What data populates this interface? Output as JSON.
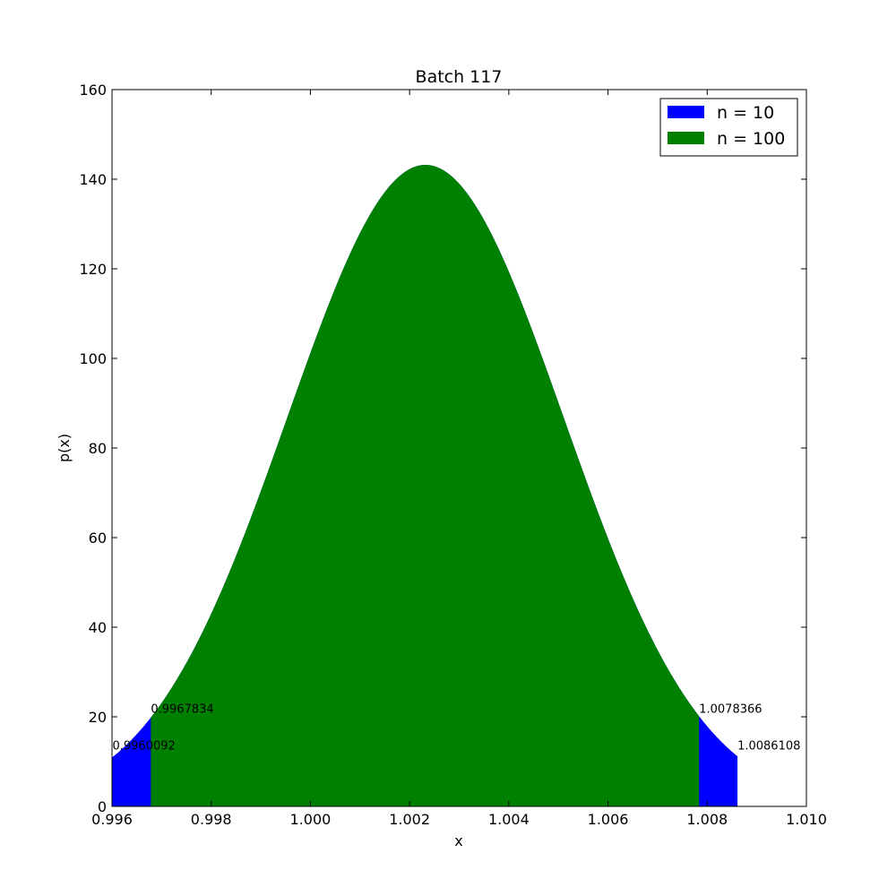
{
  "chart_data": {
    "type": "area",
    "title": "Batch 117",
    "xlabel": "x",
    "ylabel": "p(x)",
    "xlim": [
      0.996,
      1.01
    ],
    "ylim": [
      0,
      160
    ],
    "xticks": [
      "0.996",
      "0.998",
      "1.000",
      "1.002",
      "1.004",
      "1.006",
      "1.008",
      "1.010"
    ],
    "yticks": [
      "0",
      "20",
      "40",
      "60",
      "80",
      "100",
      "120",
      "140",
      "160"
    ],
    "grid": false,
    "legend_position": "top-right",
    "distribution": {
      "mean": 1.00232,
      "std": 0.002785,
      "peak": 143.2
    },
    "series": [
      {
        "name": "n = 10",
        "color": "#0000ff",
        "range": [
          0.9960092,
          1.0086108
        ]
      },
      {
        "name": "n = 100",
        "color": "#008000",
        "range": [
          0.9967834,
          1.0078366
        ]
      }
    ],
    "annotations": [
      {
        "text": "0.9960092",
        "x": 0.9960092,
        "y": 12.3
      },
      {
        "text": "0.9967834",
        "x": 0.9967834,
        "y": 20.5
      },
      {
        "text": "1.0078366",
        "x": 1.0078366,
        "y": 20.5
      },
      {
        "text": "1.0086108",
        "x": 1.0086108,
        "y": 12.3
      }
    ]
  }
}
